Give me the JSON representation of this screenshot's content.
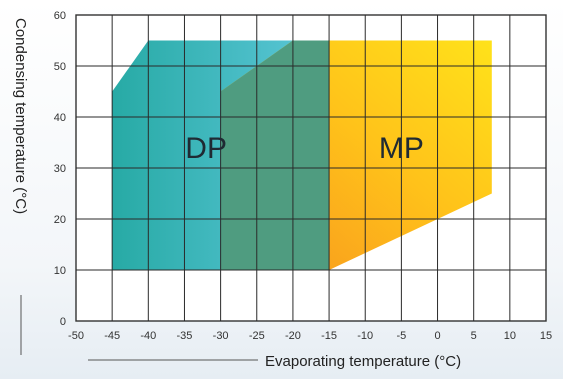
{
  "chart_data": {
    "type": "area",
    "xlabel": "Evaporating temperature (°C)",
    "ylabel": "Condensing temperature (°C)",
    "xlim": [
      -50,
      15
    ],
    "ylim": [
      0,
      60
    ],
    "xticks": [
      -50,
      -45,
      -40,
      -35,
      -30,
      -25,
      -20,
      -15,
      -10,
      -5,
      0,
      5,
      10,
      15
    ],
    "yticks": [
      0,
      10,
      20,
      30,
      40,
      50,
      60
    ],
    "grid": true,
    "regions": [
      {
        "label": "DP",
        "color": "#3fbcc4",
        "polygon": [
          [
            -45,
            10
          ],
          [
            -45,
            45
          ],
          [
            -40,
            55
          ],
          [
            -15,
            55
          ],
          [
            -15,
            10
          ]
        ]
      },
      {
        "label": "MP",
        "color": "#ffc21a",
        "polygon": [
          [
            -30,
            10
          ],
          [
            -30,
            45
          ],
          [
            -20,
            55
          ],
          [
            7.5,
            55
          ],
          [
            7.5,
            25
          ],
          [
            -15,
            10
          ]
        ]
      }
    ],
    "overlap_color": "#4f9c80"
  }
}
